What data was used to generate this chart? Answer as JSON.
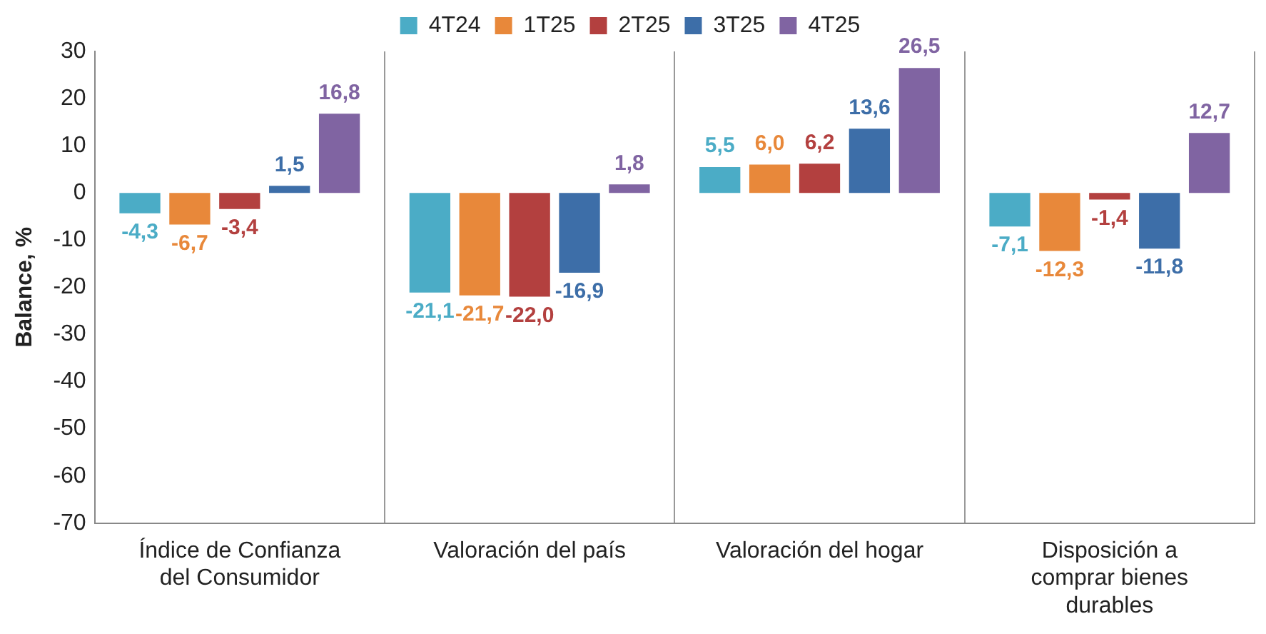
{
  "chart_data": {
    "type": "bar",
    "ylabel": "Balance, %",
    "categories": [
      "Índice de Confianza del Consumidor",
      "Valoración del país",
      "Valoración del hogar",
      "Disposición a comprar bienes durables"
    ],
    "series": [
      {
        "name": "4T24",
        "color": "#4bacc6",
        "values": [
          -4.3,
          -21.1,
          5.5,
          -7.1
        ],
        "value_labels": [
          "-4,3",
          "-21,1",
          "5,5",
          "-7,1"
        ]
      },
      {
        "name": "1T25",
        "color": "#e8883a",
        "values": [
          -6.7,
          -21.7,
          6.0,
          -12.3
        ],
        "value_labels": [
          "-6,7",
          "-21,7",
          "6,0",
          "-12,3"
        ]
      },
      {
        "name": "2T25",
        "color": "#b3403f",
        "values": [
          -3.4,
          -22.0,
          6.2,
          -1.4
        ],
        "value_labels": [
          "-3,4",
          "-22,0",
          "6,2",
          "-1,4"
        ]
      },
      {
        "name": "3T25",
        "color": "#3d6ea8",
        "values": [
          1.5,
          -16.9,
          13.6,
          -11.8
        ],
        "value_labels": [
          "1,5",
          "-16,9",
          "13,6",
          "-11,8"
        ]
      },
      {
        "name": "4T25",
        "color": "#8064a2",
        "values": [
          16.8,
          1.8,
          26.5,
          12.7
        ],
        "value_labels": [
          "16,8",
          "1,8",
          "26,5",
          "12,7"
        ]
      }
    ],
    "ylim": [
      -70,
      30
    ],
    "yticks": [
      -70,
      -60,
      -50,
      -40,
      -30,
      -20,
      -10,
      0,
      10,
      20,
      30
    ],
    "grid": "x",
    "legend": "top"
  }
}
